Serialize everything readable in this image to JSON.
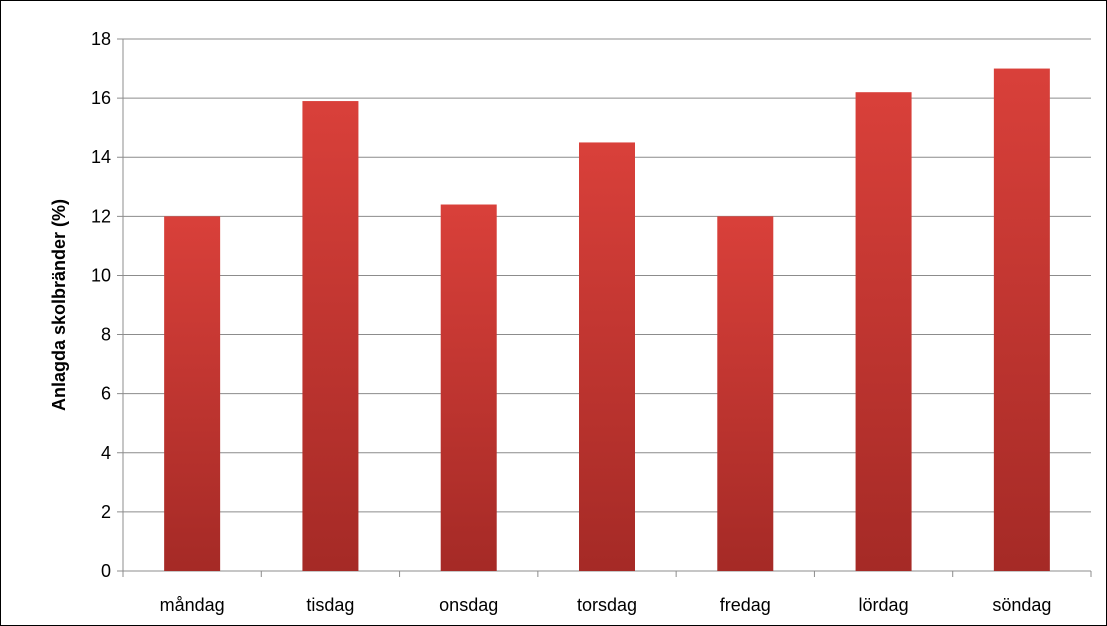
{
  "chart_data": {
    "type": "bar",
    "title": "",
    "xlabel": "",
    "ylabel": "Anlagda skolbränder (%)",
    "categories": [
      "måndag",
      "tisdag",
      "onsdag",
      "torsdag",
      "fredag",
      "lördag",
      "söndag"
    ],
    "values": [
      12.0,
      15.9,
      12.4,
      14.5,
      12.0,
      16.2,
      17.0
    ],
    "ylim": [
      0,
      18
    ],
    "yticks": [
      "0",
      "2",
      "4",
      "6",
      "8",
      "10",
      "12",
      "14",
      "16",
      "18"
    ],
    "grid": true,
    "legend": "none",
    "bar_color_top": "#d9403a",
    "bar_color_bottom": "#a52a26",
    "grid_color": "#8c8c8c"
  }
}
